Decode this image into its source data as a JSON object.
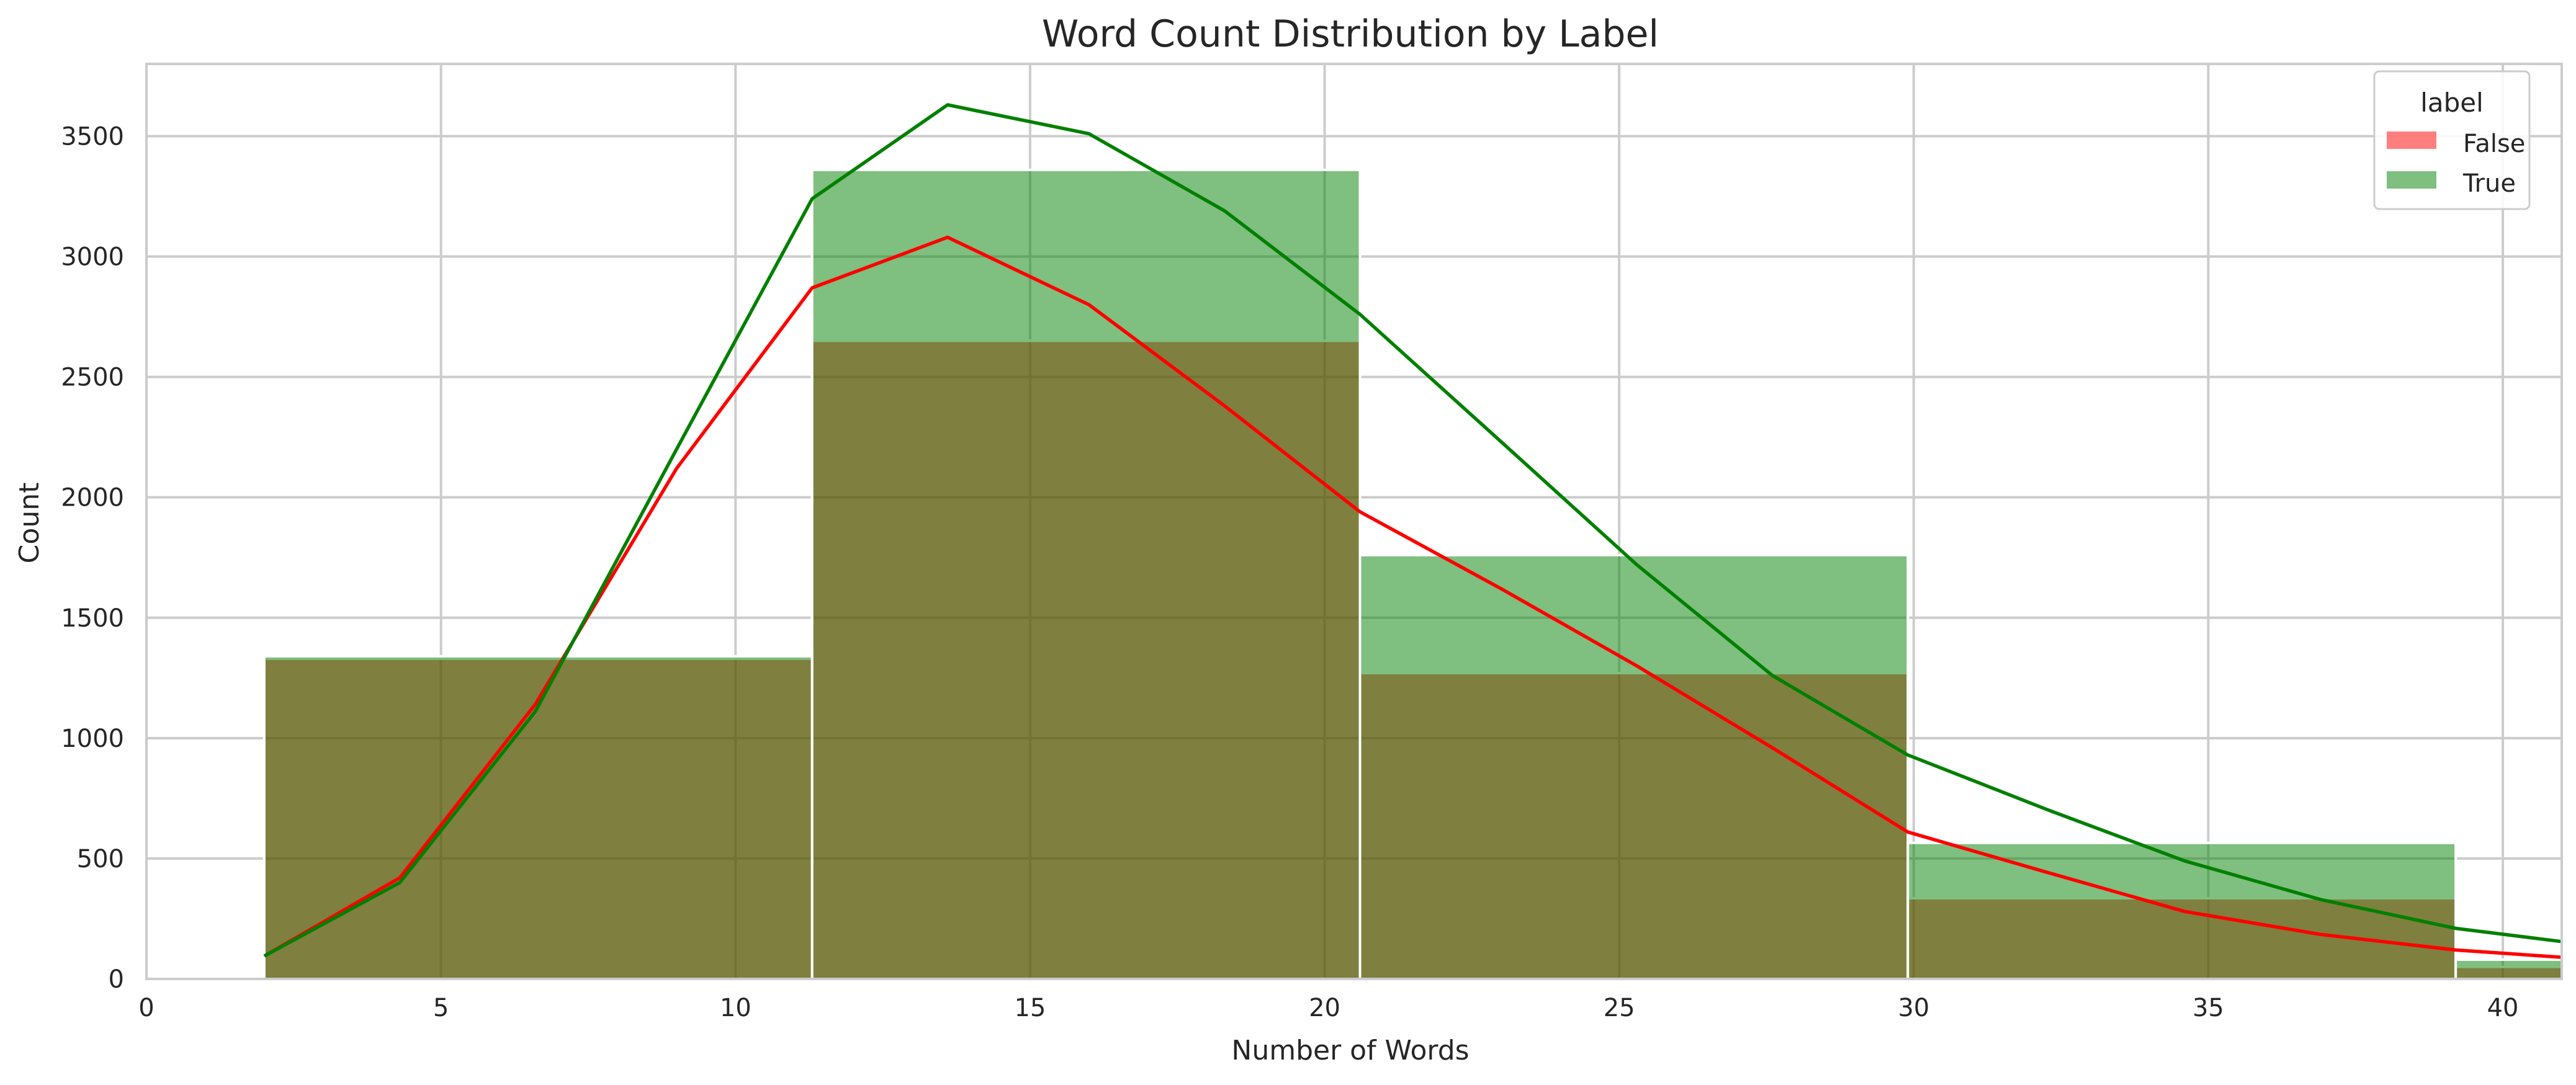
{
  "chart_data": {
    "type": "bar",
    "title": "Word Count Distribution by Label",
    "xlabel": "Number of Words",
    "ylabel": "Count",
    "xlim": [
      0,
      41
    ],
    "ylim": [
      0,
      3800
    ],
    "x_ticks": [
      0,
      5,
      10,
      15,
      20,
      25,
      30,
      35,
      40
    ],
    "y_ticks": [
      0,
      500,
      1000,
      1500,
      2000,
      2500,
      3000,
      3500
    ],
    "grid": true,
    "legend_placement": "top-right",
    "legend": {
      "title": "label",
      "entries": [
        "False",
        "True"
      ]
    },
    "bin_edges": [
      2,
      11.3,
      20.6,
      29.9,
      39.2,
      41
    ],
    "series": [
      {
        "name": "False",
        "color": "#ff0000",
        "fill_color": "#ff8080",
        "values": [
          1330,
          2650,
          1270,
          335,
          50
        ]
      },
      {
        "name": "True",
        "color": "#008000",
        "fill_color": "#80c080",
        "values": [
          1340,
          3360,
          1760,
          565,
          80
        ]
      }
    ],
    "kde": [
      {
        "name": "False",
        "color": "#ff0000",
        "x": [
          2,
          4.3,
          6.6,
          9,
          11.3,
          13.6,
          16,
          18.3,
          20.6,
          23,
          25.3,
          27.6,
          29.9,
          32.3,
          34.6,
          36.9,
          39.2,
          41
        ],
        "y": [
          95,
          420,
          1140,
          2120,
          2870,
          3080,
          2800,
          2380,
          1940,
          1620,
          1300,
          960,
          610,
          440,
          280,
          185,
          120,
          90
        ]
      },
      {
        "name": "True",
        "color": "#008000",
        "x": [
          2,
          4.3,
          6.6,
          9,
          11.3,
          13.6,
          16,
          18.3,
          20.6,
          23,
          25.3,
          27.6,
          29.9,
          32.3,
          34.6,
          36.9,
          39.2,
          41
        ],
        "y": [
          95,
          400,
          1110,
          2200,
          3240,
          3630,
          3510,
          3190,
          2760,
          2230,
          1720,
          1260,
          930,
          700,
          490,
          330,
          210,
          155
        ]
      }
    ]
  }
}
